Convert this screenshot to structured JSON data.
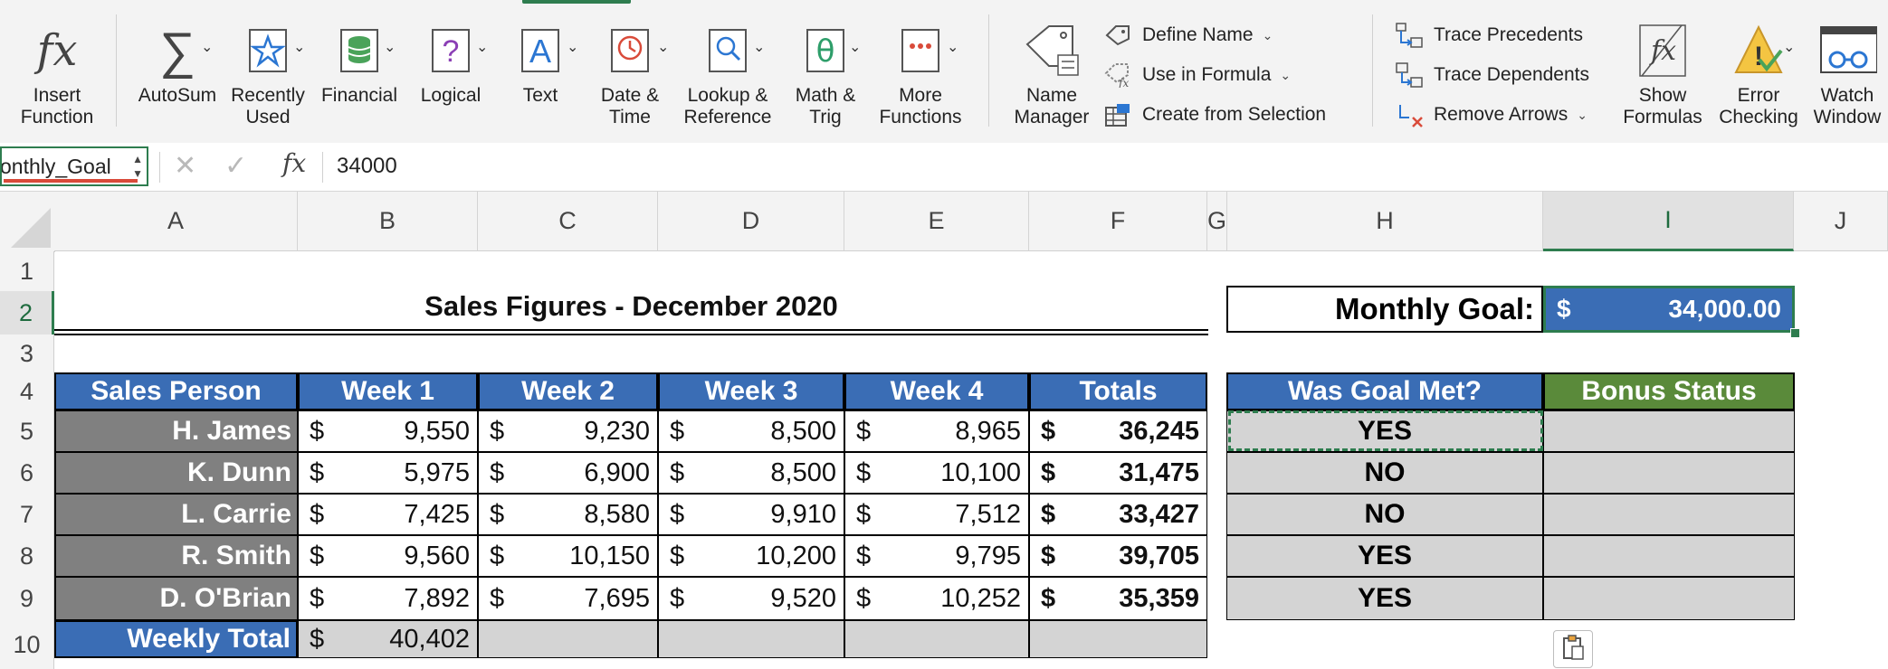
{
  "ribbon": {
    "insert_function": "Insert\nFunction",
    "autosum": "AutoSum",
    "recently_used": "Recently\nUsed",
    "financial": "Financial",
    "logical": "Logical",
    "text": "Text",
    "date_time": "Date &\nTime",
    "lookup_reference": "Lookup &\nReference",
    "math_trig": "Math &\nTrig",
    "more_functions": "More\nFunctions",
    "name_manager": "Name\nManager",
    "define_name": "Define Name",
    "use_in_formula": "Use in Formula",
    "create_from_selection": "Create from Selection",
    "trace_precedents": "Trace Precedents",
    "trace_dependents": "Trace Dependents",
    "remove_arrows": "Remove Arrows",
    "show_formulas": "Show\nFormulas",
    "error_checking": "Error\nChecking",
    "watch_window": "Watch\nWindow"
  },
  "formula_bar": {
    "name_box": "onthly_Goal",
    "fx": "fx",
    "value": "34000"
  },
  "columns": [
    "A",
    "B",
    "C",
    "D",
    "E",
    "F",
    "G",
    "H",
    "I",
    "J"
  ],
  "rows": [
    "1",
    "2",
    "3",
    "4",
    "5",
    "6",
    "7",
    "8",
    "9",
    "10"
  ],
  "sheet": {
    "title": "Sales Figures - December 2020",
    "goal_label": "Monthly Goal:",
    "goal_currency": "$",
    "goal_value": "34,000.00",
    "headers": [
      "Sales Person",
      "Week 1",
      "Week 2",
      "Week 3",
      "Week 4",
      "Totals"
    ],
    "goal_header": "Was Goal Met?",
    "bonus_header": "Bonus Status",
    "currency": "$",
    "people": [
      {
        "name": "H. James",
        "w1": "9,550",
        "w2": "9,230",
        "w3": "8,500",
        "w4": "8,965",
        "total": "36,245",
        "met": "YES"
      },
      {
        "name": "K. Dunn",
        "w1": "5,975",
        "w2": "6,900",
        "w3": "8,500",
        "w4": "10,100",
        "total": "31,475",
        "met": "NO"
      },
      {
        "name": "L. Carrie",
        "w1": "7,425",
        "w2": "8,580",
        "w3": "9,910",
        "w4": "7,512",
        "total": "33,427",
        "met": "NO"
      },
      {
        "name": "R. Smith",
        "w1": "9,560",
        "w2": "10,150",
        "w3": "10,200",
        "w4": "9,795",
        "total": "39,705",
        "met": "YES"
      },
      {
        "name": "D. O'Brian",
        "w1": "7,892",
        "w2": "7,695",
        "w3": "9,520",
        "w4": "10,252",
        "total": "35,359",
        "met": "YES"
      }
    ],
    "weekly_total_label": "Weekly Total",
    "weekly_total_w1": "40,402"
  },
  "colors": {
    "accent_green": "#2e7d4f",
    "header_blue": "#3a6db5",
    "header_green": "#5a8a3a",
    "name_gray": "#808080",
    "status_gray": "#d4d4d4"
  }
}
